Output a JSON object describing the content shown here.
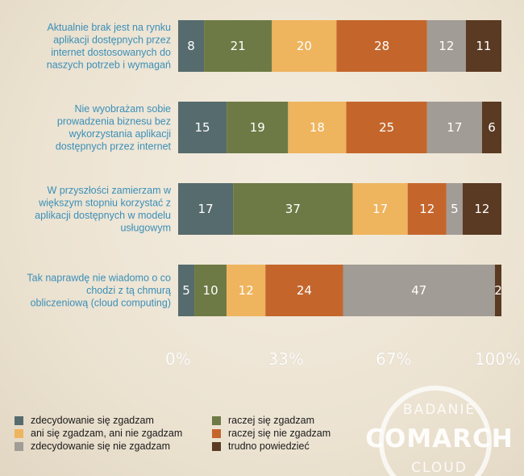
{
  "chart_data": {
    "type": "bar",
    "orientation": "horizontal",
    "stacked": true,
    "normalized": true,
    "categories": [
      [
        "Aktualnie brak jest na rynku",
        "aplikacji dostępnych przez",
        "internet dostosowanych  do",
        "naszych potrzeb i wymagań"
      ],
      [
        "Nie  wyobrażam sobie",
        "prowadzenia biznesu bez",
        "wykorzystania aplikacji",
        "dostępnych przez internet"
      ],
      [
        "W przyszłości zamierzam w",
        "większym stopniu korzystać z",
        "aplikacji dostępnych w modelu",
        "usługowym"
      ],
      [
        "Tak naprawdę nie wiadomo o co",
        "chodzi z tą chmurą",
        "obliczeniową (cloud computing)"
      ]
    ],
    "series": [
      {
        "name": "zdecydowanie się zgadzam",
        "color": "#566b6d",
        "values": [
          8,
          15,
          17,
          5
        ]
      },
      {
        "name": "raczej się zgadzam",
        "color": "#6e7a45",
        "values": [
          21,
          19,
          37,
          10
        ]
      },
      {
        "name": "ani się zgadzam, ani nie zgadzam",
        "color": "#efb45e",
        "values": [
          20,
          18,
          17,
          12
        ]
      },
      {
        "name": "raczej się nie zgadzam",
        "color": "#c4662c",
        "values": [
          28,
          25,
          12,
          24
        ]
      },
      {
        "name": "zdecydowanie się nie zgadzam",
        "color": "#a19c95",
        "values": [
          12,
          17,
          5,
          47
        ]
      },
      {
        "name": "trudno powiedzieć",
        "color": "#5a3a22",
        "values": [
          11,
          6,
          12,
          2
        ]
      }
    ],
    "x_ticks": [
      "0%",
      "33%",
      "67%",
      "100%"
    ],
    "xlim": [
      0,
      100
    ],
    "legend_position": "bottom-left",
    "grid": false
  },
  "watermark": {
    "top": "BADANIE",
    "middle": "COMARCH",
    "bottom": "CLOUD"
  }
}
